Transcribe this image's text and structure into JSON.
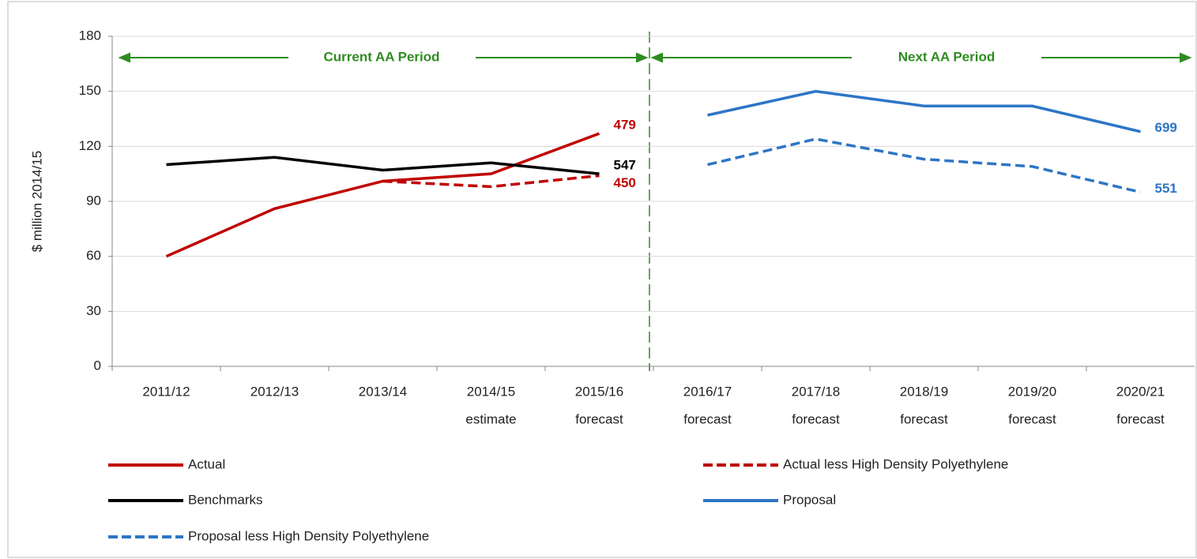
{
  "chart_data": {
    "type": "line",
    "y_label": "$ million 2014/15",
    "categories": [
      [
        "2011/12"
      ],
      [
        "2012/13"
      ],
      [
        "2013/14"
      ],
      [
        "2014/15",
        "estimate"
      ],
      [
        "2015/16",
        "forecast"
      ],
      [
        "2016/17",
        "forecast"
      ],
      [
        "2017/18",
        "forecast"
      ],
      [
        "2018/19",
        "forecast"
      ],
      [
        "2019/20",
        "forecast"
      ],
      [
        "2020/21",
        "forecast"
      ]
    ],
    "series": [
      {
        "name": "Actual",
        "color": "#c00000",
        "dashed": false,
        "end_label": 479,
        "values": [
          60,
          86,
          101,
          105,
          127,
          null,
          null,
          null,
          null,
          null
        ]
      },
      {
        "name": "Actual less High Density Polyethylene",
        "color": "#c00000",
        "dashed": true,
        "end_label": 450,
        "values": [
          null,
          null,
          101,
          98,
          104,
          null,
          null,
          null,
          null,
          null
        ]
      },
      {
        "name": "Benchmarks",
        "color": "#000000",
        "dashed": false,
        "end_label": 547,
        "values": [
          110,
          114,
          107,
          111,
          105,
          null,
          null,
          null,
          null,
          null
        ]
      },
      {
        "name": "Proposal",
        "color": "#2e75c6",
        "dashed": false,
        "end_label": 699,
        "values": [
          null,
          null,
          null,
          null,
          null,
          137,
          150,
          142,
          142,
          128
        ]
      },
      {
        "name": "Proposal less High Density Polyethylene",
        "color": "#2e75c6",
        "dashed": true,
        "end_label": 551,
        "values": [
          null,
          null,
          null,
          null,
          null,
          110,
          124,
          113,
          109,
          95
        ]
      }
    ],
    "annotations": [
      "Current AA Period",
      "Next AA Period"
    ],
    "ylim": [
      0,
      180
    ],
    "yticks": [
      0,
      30,
      60,
      90,
      120,
      150,
      180
    ],
    "grid": true
  }
}
